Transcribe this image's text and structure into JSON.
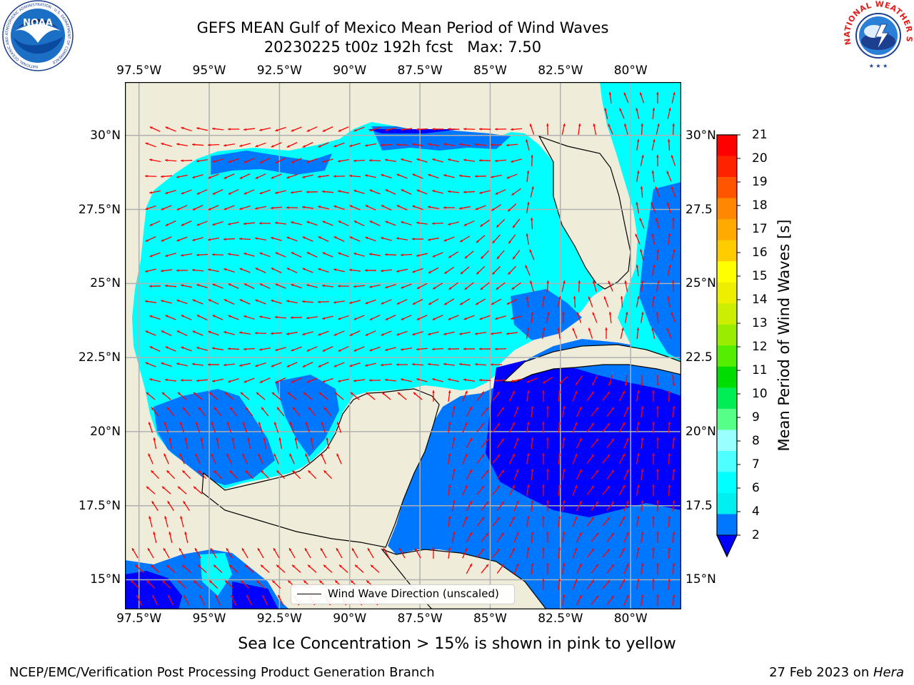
{
  "title": {
    "line1": "GEFS MEAN Gulf of Mexico Mean Period of Wind Waves",
    "line2": "20230225 t00z 192h fcst   Max: 7.50"
  },
  "axes": {
    "lon_labels": [
      "97.5°W",
      "95°W",
      "92.5°W",
      "90°W",
      "87.5°W",
      "85°W",
      "82.5°W",
      "80°W"
    ],
    "lat_labels_left": [
      "30°N",
      "27.5°N",
      "25°N",
      "22.5°N",
      "20°N",
      "17.5°N",
      "15°N"
    ],
    "lat_labels_right": [
      "30°N",
      "27.5",
      "25°N",
      "22.5",
      "20°N",
      "17.5",
      "15°N"
    ]
  },
  "map": {
    "lon_range": [
      -98,
      -78.2
    ],
    "lat_range": [
      14,
      31.8
    ],
    "land_color": "#efedd9",
    "arrow_color": "#ff0000",
    "grid": true
  },
  "colorbar": {
    "title": "Mean Period of Wind Waves [s]",
    "ticks": [
      "2",
      "4",
      "6",
      "7",
      "8",
      "9",
      "10",
      "11",
      "12",
      "13",
      "14",
      "15",
      "16",
      "17",
      "18",
      "19",
      "20",
      "21"
    ],
    "colors": [
      "#0077ff",
      "#00f0f0",
      "#00ffff",
      "#4dffff",
      "#99ffff",
      "#55ff88",
      "#00ee55",
      "#00dd00",
      "#55ee00",
      "#99ee00",
      "#ccee00",
      "#eeee00",
      "#ffff00",
      "#ffcc00",
      "#ffaa00",
      "#ff8800",
      "#ff5500",
      "#ff2200",
      "#ff0000"
    ],
    "extend_min_color": "#0000ff"
  },
  "legend": {
    "label": "Wind Wave Direction (unscaled)"
  },
  "note": "Sea Ice Concentration > 15% is shown in pink to yellow",
  "footer": {
    "left": "NCEP/EMC/Verification Post Processing Product Generation Branch",
    "right_date": "27 Feb 2023 on ",
    "right_host": "Hera"
  },
  "logos": {
    "noaa_text": "NOAA",
    "noaa_ring": "NATIONAL OCEANIC AND ATMOSPHERIC ADMINISTRATION · U.S. DEPARTMENT OF COMMERCE",
    "nws_ring": "NATIONAL WEATHER SERVICE"
  }
}
